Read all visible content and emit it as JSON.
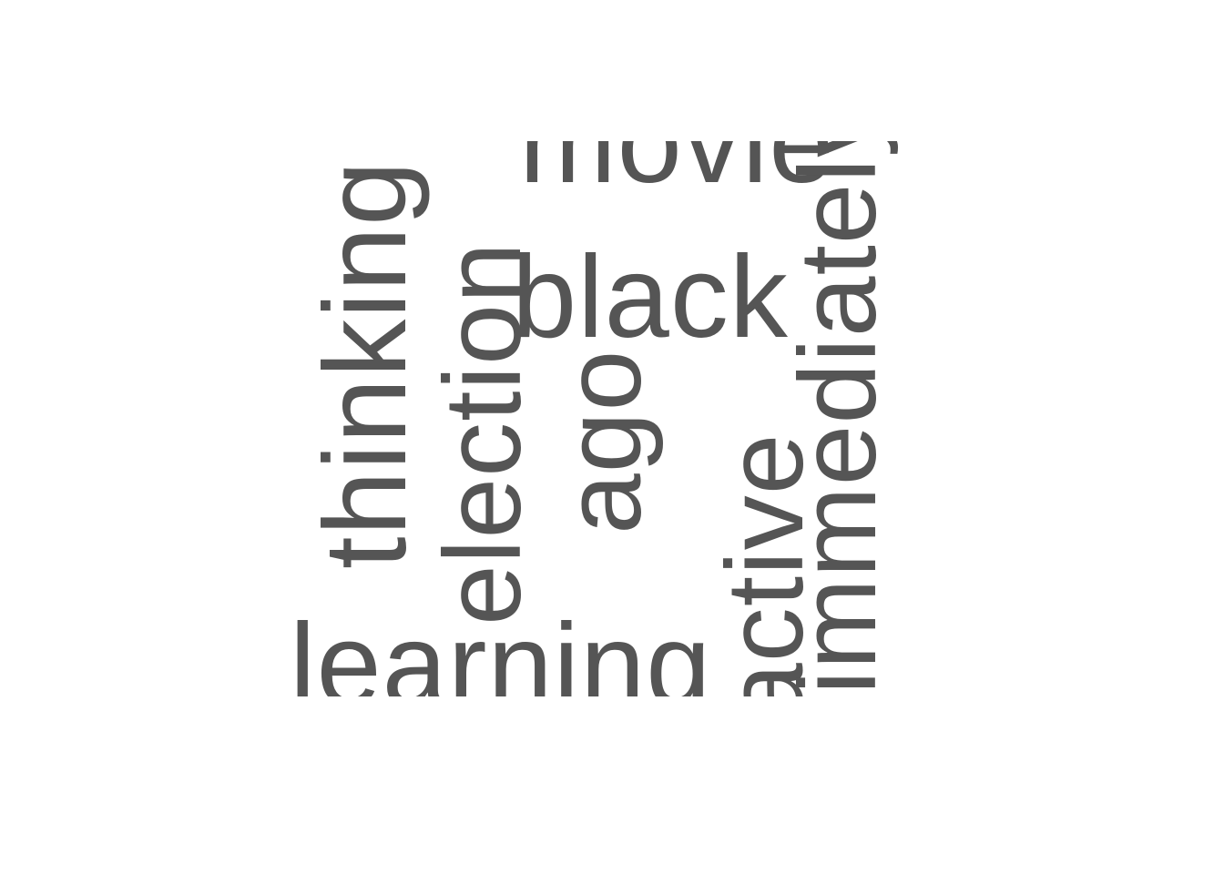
{
  "words": {
    "movie": "movie",
    "black": "black",
    "thinking": "thinking",
    "election": "election",
    "ago": "ago",
    "active": "active",
    "immediately": "immediately",
    "learning": "learning"
  },
  "colors": {
    "text": "#555555",
    "background": "#ffffff"
  }
}
